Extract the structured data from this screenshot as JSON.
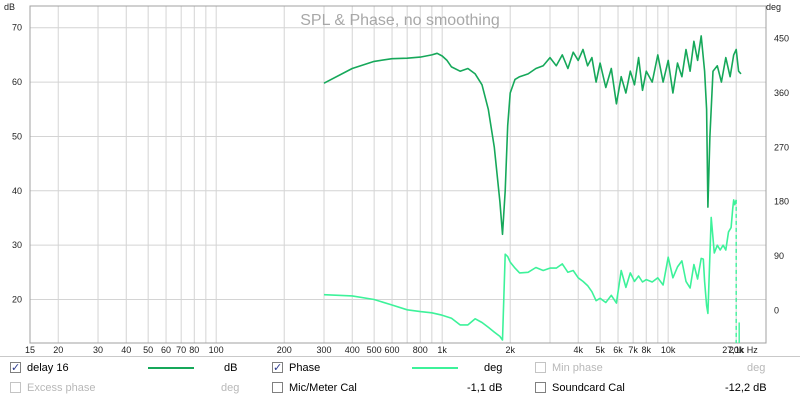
{
  "chart_data": {
    "type": "line",
    "title": "SPL & Phase, no smoothing",
    "xlabel": "Hz",
    "ylabel_left": "dB",
    "ylabel_right": "deg",
    "x_scale": "log",
    "xlim": [
      15,
      27100
    ],
    "ylim_left": [
      12,
      74
    ],
    "ylim_right": [
      -54,
      504
    ],
    "grid": true,
    "x_ticks": [
      {
        "v": 15,
        "label": "15"
      },
      {
        "v": 20,
        "label": "20"
      },
      {
        "v": 30,
        "label": "30"
      },
      {
        "v": 40,
        "label": "40"
      },
      {
        "v": 50,
        "label": "50"
      },
      {
        "v": 60,
        "label": "60"
      },
      {
        "v": 70,
        "label": "70"
      },
      {
        "v": 80,
        "label": "80"
      },
      {
        "v": 90,
        "label": ""
      },
      {
        "v": 100,
        "label": "100"
      },
      {
        "v": 200,
        "label": "200"
      },
      {
        "v": 300,
        "label": "300"
      },
      {
        "v": 400,
        "label": "400"
      },
      {
        "v": 500,
        "label": "500"
      },
      {
        "v": 600,
        "label": "600"
      },
      {
        "v": 700,
        "label": ""
      },
      {
        "v": 800,
        "label": "800"
      },
      {
        "v": 900,
        "label": ""
      },
      {
        "v": 1000,
        "label": "1k"
      },
      {
        "v": 2000,
        "label": "2k"
      },
      {
        "v": 3000,
        "label": ""
      },
      {
        "v": 4000,
        "label": "4k"
      },
      {
        "v": 5000,
        "label": "5k"
      },
      {
        "v": 6000,
        "label": "6k"
      },
      {
        "v": 7000,
        "label": "7k"
      },
      {
        "v": 8000,
        "label": "8k"
      },
      {
        "v": 9000,
        "label": ""
      },
      {
        "v": 10000,
        "label": "10k"
      },
      {
        "v": 20000,
        "label": "20k"
      },
      {
        "v": 27100,
        "label": "27,1k Hz"
      }
    ],
    "y_ticks_left": [
      20,
      30,
      40,
      50,
      60,
      70
    ],
    "y_ticks_right": [
      0,
      90,
      180,
      270,
      360,
      450
    ],
    "series": [
      {
        "name": "delay 16",
        "unit": "dB",
        "color": "#16a85a",
        "x": [
          300,
          400,
          500,
          600,
          700,
          800,
          900,
          950,
          1000,
          1050,
          1100,
          1200,
          1300,
          1400,
          1500,
          1600,
          1700,
          1800,
          1850,
          1900,
          1950,
          2000,
          2100,
          2200,
          2400,
          2600,
          2800,
          3000,
          3200,
          3400,
          3600,
          3800,
          4000,
          4200,
          4400,
          4600,
          4800,
          5000,
          5300,
          5600,
          5900,
          6200,
          6500,
          6800,
          7100,
          7400,
          7700,
          8000,
          8500,
          9000,
          9500,
          10000,
          10500,
          11000,
          11500,
          12000,
          12500,
          13000,
          13500,
          14000,
          14500,
          14800,
          15000,
          15300,
          15800,
          16500,
          17200,
          18000,
          18800,
          19500,
          20000,
          20500,
          21000
        ],
        "values": [
          59.8,
          62.5,
          63.8,
          64.3,
          64.4,
          64.6,
          65.0,
          65.3,
          64.8,
          64.0,
          62.8,
          62.0,
          62.5,
          61.5,
          59.5,
          55.0,
          48.0,
          38.0,
          32.0,
          40.0,
          52.0,
          58.0,
          60.5,
          61.0,
          61.5,
          62.5,
          63.0,
          64.5,
          63.0,
          65.0,
          62.5,
          65.5,
          64.0,
          66.0,
          63.0,
          64.5,
          60.0,
          63.5,
          59.0,
          62.5,
          56.0,
          61.0,
          58.0,
          62.0,
          59.5,
          64.5,
          58.5,
          62.0,
          60.0,
          65.0,
          60.0,
          64.0,
          58.0,
          63.5,
          61.0,
          66.0,
          62.0,
          67.5,
          64.0,
          68.5,
          62.0,
          55.0,
          37.0,
          50.0,
          62.0,
          63.0,
          60.0,
          64.5,
          61.0,
          65.0,
          66.0,
          62.0,
          61.5
        ]
      },
      {
        "name": "Phase",
        "unit": "deg",
        "color": "#3df29a",
        "x": [
          300,
          400,
          500,
          600,
          700,
          800,
          900,
          1000,
          1100,
          1200,
          1300,
          1400,
          1500,
          1600,
          1700,
          1800,
          1850,
          1900,
          1950,
          2000,
          2100,
          2200,
          2400,
          2600,
          2800,
          3000,
          3200,
          3400,
          3600,
          3800,
          4000,
          4200,
          4400,
          4600,
          4800,
          5000,
          5300,
          5600,
          5900,
          6200,
          6500,
          6800,
          7100,
          7400,
          7700,
          8000,
          8500,
          9000,
          9500,
          10000,
          10500,
          11000,
          11500,
          12000,
          12500,
          13000,
          13500,
          14000,
          14300,
          14500,
          14800,
          15000,
          15500,
          16000,
          16500,
          17000,
          17500,
          18000,
          18500,
          19000,
          19300,
          19500,
          19700,
          20000
        ],
        "values": [
          26,
          24,
          18,
          9,
          1,
          -2,
          -4,
          -8,
          -13,
          -24,
          -24,
          -14,
          -20,
          -28,
          -36,
          -43,
          -49,
          93,
          89,
          80,
          70,
          62,
          63,
          71,
          66,
          70,
          70,
          77,
          63,
          66,
          54,
          48,
          41,
          31,
          16,
          20,
          13,
          25,
          12,
          66,
          38,
          62,
          48,
          57,
          47,
          51,
          47,
          54,
          42,
          88,
          54,
          72,
          82,
          48,
          37,
          76,
          52,
          86,
          85,
          48,
          8,
          -5,
          154,
          95,
          108,
          100,
          108,
          100,
          130,
          137,
          168,
          183,
          175,
          183
        ]
      }
    ],
    "legend": {
      "items": [
        {
          "label": "delay 16",
          "checked": true,
          "unit": "dB",
          "color": "#16a85a",
          "value": "",
          "enabled": true
        },
        {
          "label": "Phase",
          "checked": true,
          "unit": "deg",
          "color": "#3df29a",
          "value": "",
          "enabled": true
        },
        {
          "label": "Min phase",
          "checked": false,
          "unit": "deg",
          "color": "",
          "value": "",
          "enabled": false
        },
        {
          "label": "Excess phase",
          "checked": false,
          "unit": "deg",
          "color": "",
          "value": "",
          "enabled": false
        },
        {
          "label": "Mic/Meter Cal",
          "checked": false,
          "unit": "",
          "color": "",
          "value": "-1,1 dB",
          "enabled": true
        },
        {
          "label": "Soundcard Cal",
          "checked": false,
          "unit": "",
          "color": "",
          "value": "-12,2 dB",
          "enabled": true
        }
      ]
    }
  }
}
